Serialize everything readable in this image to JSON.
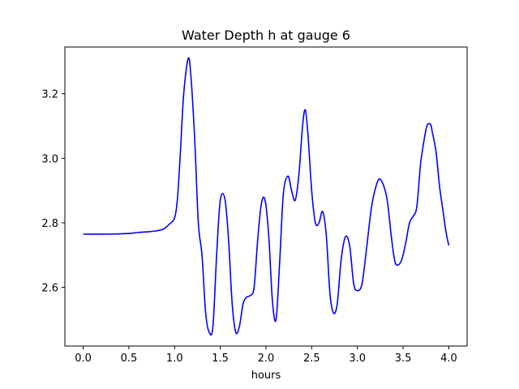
{
  "chart_data": {
    "type": "line",
    "title": "Water Depth h at gauge 6",
    "xlabel": "hours",
    "ylabel": "",
    "xlim": [
      -0.2,
      4.2
    ],
    "ylim": [
      2.418,
      3.345
    ],
    "xticks": [
      0.0,
      0.5,
      1.0,
      1.5,
      2.0,
      2.5,
      3.0,
      3.5,
      4.0
    ],
    "xtick_labels": [
      "0.0",
      "0.5",
      "1.0",
      "1.5",
      "2.0",
      "2.5",
      "3.0",
      "3.5",
      "4.0"
    ],
    "yticks": [
      2.6,
      2.8,
      3.0,
      3.2
    ],
    "ytick_labels": [
      "2.6",
      "2.8",
      "3.0",
      "3.2"
    ],
    "grid": false,
    "series": [
      {
        "color": "#0000ff",
        "x": [
          0.0,
          0.3,
          0.5,
          0.6,
          0.7,
          0.8,
          0.88,
          0.94,
          1.0,
          1.03,
          1.06,
          1.1,
          1.15,
          1.18,
          1.22,
          1.26,
          1.3,
          1.34,
          1.38,
          1.42,
          1.46,
          1.5,
          1.55,
          1.59,
          1.63,
          1.67,
          1.71,
          1.75,
          1.79,
          1.83,
          1.87,
          1.91,
          1.95,
          1.99,
          2.03,
          2.07,
          2.11,
          2.15,
          2.19,
          2.24,
          2.28,
          2.32,
          2.36,
          2.4,
          2.43,
          2.46,
          2.5,
          2.54,
          2.58,
          2.62,
          2.66,
          2.7,
          2.74,
          2.78,
          2.82,
          2.86,
          2.89,
          2.92,
          2.96,
          3.0,
          3.05,
          3.1,
          3.15,
          3.2,
          3.25,
          3.32,
          3.37,
          3.41,
          3.45,
          3.49,
          3.53,
          3.57,
          3.61,
          3.65,
          3.69,
          3.72,
          3.76,
          3.8,
          3.82,
          3.86,
          3.9,
          3.94,
          3.97,
          4.0
        ],
        "y": [
          2.765,
          2.765,
          2.767,
          2.77,
          2.772,
          2.775,
          2.781,
          2.795,
          2.815,
          2.87,
          3.0,
          3.2,
          3.31,
          3.25,
          3.06,
          2.8,
          2.7,
          2.52,
          2.46,
          2.48,
          2.7,
          2.87,
          2.875,
          2.75,
          2.55,
          2.46,
          2.48,
          2.55,
          2.57,
          2.575,
          2.6,
          2.75,
          2.86,
          2.87,
          2.76,
          2.56,
          2.5,
          2.68,
          2.89,
          2.945,
          2.9,
          2.87,
          2.95,
          3.1,
          3.15,
          3.07,
          2.9,
          2.8,
          2.8,
          2.835,
          2.76,
          2.58,
          2.52,
          2.55,
          2.68,
          2.75,
          2.755,
          2.72,
          2.61,
          2.59,
          2.61,
          2.72,
          2.84,
          2.91,
          2.935,
          2.88,
          2.76,
          2.68,
          2.67,
          2.69,
          2.74,
          2.8,
          2.82,
          2.85,
          2.98,
          3.04,
          3.1,
          3.105,
          3.08,
          3.02,
          2.91,
          2.83,
          2.77,
          2.73
        ]
      }
    ]
  }
}
